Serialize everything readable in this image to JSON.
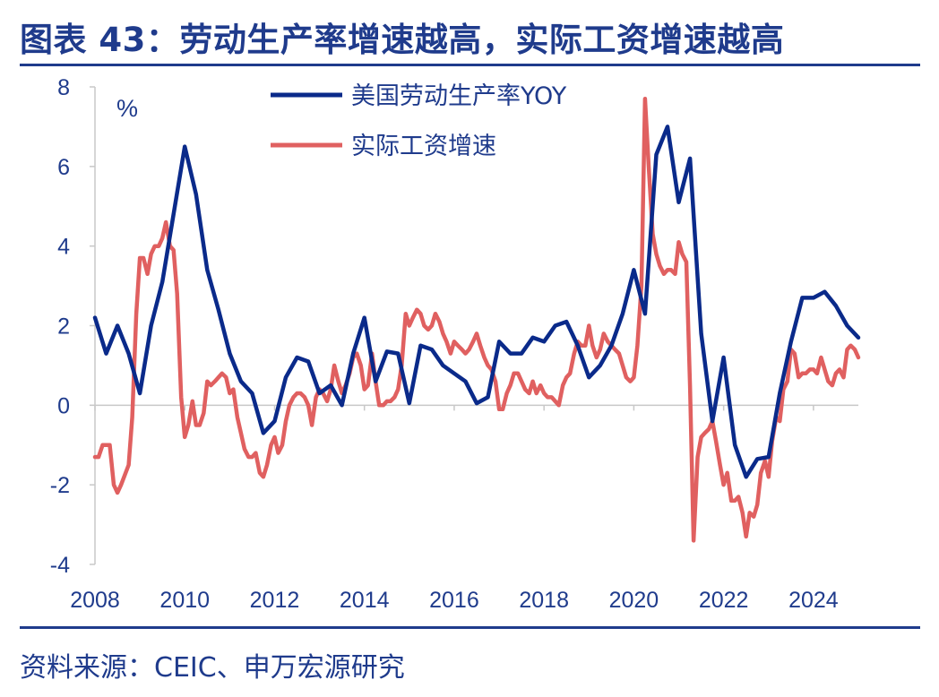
{
  "title": "图表 43：劳动生产率增速越高，实际工资增速越高",
  "source": "资料来源：CEIC、申万宏源研究",
  "colors": {
    "text": "#1f3b8c",
    "productivity": "#0a2a8a",
    "wage": "#e06060",
    "axis": "#c8c8c8"
  },
  "chart_data": {
    "type": "line",
    "ylabel": "%",
    "ylim": [
      -4,
      8
    ],
    "yticks": [
      "8",
      "6",
      "4",
      "2",
      "0",
      "-2",
      "-4"
    ],
    "xlim": [
      2008,
      2025
    ],
    "xticks": [
      "2008",
      "2010",
      "2012",
      "2014",
      "2016",
      "2018",
      "2020",
      "2022",
      "2024"
    ],
    "legend_position": "top",
    "series": [
      {
        "name": "美国劳动生产率YOY",
        "points": [
          [
            2008.0,
            2.2
          ],
          [
            2008.25,
            1.3
          ],
          [
            2008.5,
            2.0
          ],
          [
            2008.75,
            1.3
          ],
          [
            2009.0,
            0.3
          ],
          [
            2009.25,
            2.0
          ],
          [
            2009.5,
            3.1
          ],
          [
            2009.75,
            4.8
          ],
          [
            2010.0,
            6.5
          ],
          [
            2010.25,
            5.3
          ],
          [
            2010.5,
            3.4
          ],
          [
            2010.75,
            2.4
          ],
          [
            2011.0,
            1.3
          ],
          [
            2011.25,
            0.6
          ],
          [
            2011.5,
            0.3
          ],
          [
            2011.75,
            -0.7
          ],
          [
            2012.0,
            -0.4
          ],
          [
            2012.25,
            0.7
          ],
          [
            2012.5,
            1.2
          ],
          [
            2012.75,
            1.1
          ],
          [
            2013.0,
            0.3
          ],
          [
            2013.25,
            0.5
          ],
          [
            2013.5,
            0.0
          ],
          [
            2013.75,
            1.3
          ],
          [
            2014.0,
            2.2
          ],
          [
            2014.25,
            0.6
          ],
          [
            2014.5,
            1.35
          ],
          [
            2014.75,
            1.3
          ],
          [
            2015.0,
            0.05
          ],
          [
            2015.25,
            1.5
          ],
          [
            2015.5,
            1.4
          ],
          [
            2015.75,
            1.0
          ],
          [
            2016.0,
            0.8
          ],
          [
            2016.25,
            0.6
          ],
          [
            2016.5,
            0.05
          ],
          [
            2016.75,
            0.2
          ],
          [
            2017.0,
            1.6
          ],
          [
            2017.25,
            1.3
          ],
          [
            2017.5,
            1.3
          ],
          [
            2017.75,
            1.7
          ],
          [
            2018.0,
            1.6
          ],
          [
            2018.25,
            2.0
          ],
          [
            2018.5,
            2.1
          ],
          [
            2018.75,
            1.5
          ],
          [
            2019.0,
            0.7
          ],
          [
            2019.25,
            1.0
          ],
          [
            2019.5,
            1.5
          ],
          [
            2019.75,
            2.3
          ],
          [
            2020.0,
            3.4
          ],
          [
            2020.25,
            2.3
          ],
          [
            2020.5,
            6.3
          ],
          [
            2020.75,
            7.0
          ],
          [
            2021.0,
            5.1
          ],
          [
            2021.25,
            6.2
          ],
          [
            2021.5,
            1.8
          ],
          [
            2021.75,
            -0.4
          ],
          [
            2022.0,
            1.2
          ],
          [
            2022.25,
            -1.0
          ],
          [
            2022.5,
            -1.8
          ],
          [
            2022.75,
            -1.35
          ],
          [
            2023.0,
            -1.3
          ],
          [
            2023.25,
            0.3
          ],
          [
            2023.5,
            1.6
          ],
          [
            2023.75,
            2.7
          ],
          [
            2024.0,
            2.7
          ],
          [
            2024.25,
            2.85
          ],
          [
            2024.5,
            2.5
          ],
          [
            2024.75,
            2.0
          ],
          [
            2025.0,
            1.7
          ]
        ]
      },
      {
        "name": "实际工资增速",
        "points": [
          [
            2008.0,
            -1.3
          ],
          [
            2008.08,
            -1.3
          ],
          [
            2008.17,
            -1.0
          ],
          [
            2008.33,
            -1.0
          ],
          [
            2008.42,
            -2.0
          ],
          [
            2008.5,
            -2.2
          ],
          [
            2008.58,
            -2.0
          ],
          [
            2008.75,
            -1.5
          ],
          [
            2008.83,
            -0.3
          ],
          [
            2008.92,
            2.3
          ],
          [
            2009.0,
            3.7
          ],
          [
            2009.08,
            3.7
          ],
          [
            2009.17,
            3.3
          ],
          [
            2009.25,
            3.8
          ],
          [
            2009.33,
            4.0
          ],
          [
            2009.42,
            4.0
          ],
          [
            2009.5,
            4.2
          ],
          [
            2009.58,
            4.6
          ],
          [
            2009.67,
            4.0
          ],
          [
            2009.75,
            3.9
          ],
          [
            2009.83,
            2.8
          ],
          [
            2009.92,
            0.2
          ],
          [
            2010.0,
            -0.8
          ],
          [
            2010.08,
            -0.5
          ],
          [
            2010.17,
            0.1
          ],
          [
            2010.25,
            -0.5
          ],
          [
            2010.33,
            -0.5
          ],
          [
            2010.42,
            -0.2
          ],
          [
            2010.5,
            0.6
          ],
          [
            2010.58,
            0.5
          ],
          [
            2010.67,
            0.6
          ],
          [
            2010.75,
            0.7
          ],
          [
            2010.83,
            0.8
          ],
          [
            2010.92,
            0.7
          ],
          [
            2011.0,
            0.3
          ],
          [
            2011.08,
            0.4
          ],
          [
            2011.17,
            -0.3
          ],
          [
            2011.25,
            -0.7
          ],
          [
            2011.33,
            -1.1
          ],
          [
            2011.42,
            -1.3
          ],
          [
            2011.5,
            -1.3
          ],
          [
            2011.58,
            -1.2
          ],
          [
            2011.67,
            -1.7
          ],
          [
            2011.75,
            -1.8
          ],
          [
            2011.83,
            -1.5
          ],
          [
            2011.92,
            -1.0
          ],
          [
            2012.0,
            -0.8
          ],
          [
            2012.08,
            -1.2
          ],
          [
            2012.17,
            -1.0
          ],
          [
            2012.25,
            -0.4
          ],
          [
            2012.33,
            0.0
          ],
          [
            2012.42,
            0.2
          ],
          [
            2012.5,
            0.3
          ],
          [
            2012.58,
            0.3
          ],
          [
            2012.67,
            0.2
          ],
          [
            2012.75,
            0.0
          ],
          [
            2012.83,
            -0.5
          ],
          [
            2012.92,
            0.2
          ],
          [
            2013.0,
            0.4
          ],
          [
            2013.08,
            0.3
          ],
          [
            2013.17,
            0.1
          ],
          [
            2013.25,
            0.4
          ],
          [
            2013.33,
            1.0
          ],
          [
            2013.42,
            0.6
          ],
          [
            2013.5,
            0.3
          ],
          [
            2013.58,
            0.5
          ],
          [
            2013.67,
            0.8
          ],
          [
            2013.75,
            1.2
          ],
          [
            2013.83,
            1.3
          ],
          [
            2013.92,
            1.0
          ],
          [
            2014.0,
            0.4
          ],
          [
            2014.08,
            0.5
          ],
          [
            2014.17,
            1.3
          ],
          [
            2014.25,
            0.6
          ],
          [
            2014.33,
            0.0
          ],
          [
            2014.42,
            0.0
          ],
          [
            2014.5,
            0.1
          ],
          [
            2014.58,
            0.1
          ],
          [
            2014.67,
            0.2
          ],
          [
            2014.75,
            0.4
          ],
          [
            2014.83,
            1.0
          ],
          [
            2014.92,
            2.3
          ],
          [
            2015.0,
            2.0
          ],
          [
            2015.08,
            2.2
          ],
          [
            2015.17,
            2.4
          ],
          [
            2015.25,
            2.3
          ],
          [
            2015.33,
            2.0
          ],
          [
            2015.42,
            1.9
          ],
          [
            2015.5,
            2.0
          ],
          [
            2015.58,
            2.3
          ],
          [
            2015.67,
            2.1
          ],
          [
            2015.75,
            1.8
          ],
          [
            2015.83,
            1.6
          ],
          [
            2015.92,
            1.3
          ],
          [
            2016.0,
            1.6
          ],
          [
            2016.08,
            1.5
          ],
          [
            2016.17,
            1.4
          ],
          [
            2016.25,
            1.3
          ],
          [
            2016.33,
            1.4
          ],
          [
            2016.42,
            1.6
          ],
          [
            2016.5,
            1.8
          ],
          [
            2016.58,
            1.5
          ],
          [
            2016.67,
            1.2
          ],
          [
            2016.75,
            1.0
          ],
          [
            2016.83,
            0.9
          ],
          [
            2016.92,
            0.6
          ],
          [
            2017.0,
            -0.1
          ],
          [
            2017.08,
            -0.1
          ],
          [
            2017.17,
            0.3
          ],
          [
            2017.25,
            0.5
          ],
          [
            2017.33,
            0.8
          ],
          [
            2017.42,
            0.8
          ],
          [
            2017.5,
            0.6
          ],
          [
            2017.58,
            0.4
          ],
          [
            2017.67,
            0.3
          ],
          [
            2017.75,
            0.6
          ],
          [
            2017.83,
            0.3
          ],
          [
            2017.92,
            0.5
          ],
          [
            2018.0,
            0.3
          ],
          [
            2018.08,
            0.2
          ],
          [
            2018.17,
            0.2
          ],
          [
            2018.25,
            0.1
          ],
          [
            2018.33,
            0.0
          ],
          [
            2018.42,
            0.5
          ],
          [
            2018.5,
            0.7
          ],
          [
            2018.58,
            0.8
          ],
          [
            2018.67,
            1.3
          ],
          [
            2018.75,
            1.6
          ],
          [
            2018.83,
            1.5
          ],
          [
            2018.92,
            1.5
          ],
          [
            2019.0,
            2.0
          ],
          [
            2019.08,
            1.5
          ],
          [
            2019.17,
            1.2
          ],
          [
            2019.25,
            1.4
          ],
          [
            2019.33,
            1.8
          ],
          [
            2019.42,
            1.6
          ],
          [
            2019.5,
            1.5
          ],
          [
            2019.58,
            1.4
          ],
          [
            2019.67,
            1.3
          ],
          [
            2019.75,
            1.0
          ],
          [
            2019.83,
            0.7
          ],
          [
            2019.92,
            0.6
          ],
          [
            2020.0,
            0.7
          ],
          [
            2020.08,
            1.5
          ],
          [
            2020.17,
            3.0
          ],
          [
            2020.25,
            7.7
          ],
          [
            2020.33,
            6.0
          ],
          [
            2020.42,
            4.3
          ],
          [
            2020.5,
            3.8
          ],
          [
            2020.58,
            3.5
          ],
          [
            2020.67,
            3.3
          ],
          [
            2020.75,
            3.4
          ],
          [
            2020.83,
            3.4
          ],
          [
            2020.92,
            3.3
          ],
          [
            2021.0,
            4.1
          ],
          [
            2021.08,
            3.8
          ],
          [
            2021.17,
            3.6
          ],
          [
            2021.25,
            0.5
          ],
          [
            2021.33,
            -3.4
          ],
          [
            2021.42,
            -1.3
          ],
          [
            2021.5,
            -0.8
          ],
          [
            2021.58,
            -0.7
          ],
          [
            2021.67,
            -0.6
          ],
          [
            2021.75,
            -0.4
          ],
          [
            2021.83,
            -0.9
          ],
          [
            2021.92,
            -1.5
          ],
          [
            2022.0,
            -2.0
          ],
          [
            2022.08,
            -1.7
          ],
          [
            2022.17,
            -2.4
          ],
          [
            2022.25,
            -2.4
          ],
          [
            2022.33,
            -2.3
          ],
          [
            2022.42,
            -2.7
          ],
          [
            2022.5,
            -3.3
          ],
          [
            2022.58,
            -2.7
          ],
          [
            2022.67,
            -2.8
          ],
          [
            2022.75,
            -2.5
          ],
          [
            2022.83,
            -1.7
          ],
          [
            2022.92,
            -1.4
          ],
          [
            2023.0,
            -1.8
          ],
          [
            2023.08,
            -0.9
          ],
          [
            2023.17,
            -0.3
          ],
          [
            2023.25,
            -0.4
          ],
          [
            2023.33,
            0.4
          ],
          [
            2023.42,
            0.6
          ],
          [
            2023.5,
            1.4
          ],
          [
            2023.58,
            1.3
          ],
          [
            2023.67,
            0.7
          ],
          [
            2023.75,
            0.8
          ],
          [
            2023.83,
            0.8
          ],
          [
            2023.92,
            0.9
          ],
          [
            2024.0,
            0.9
          ],
          [
            2024.08,
            0.8
          ],
          [
            2024.17,
            1.2
          ],
          [
            2024.25,
            0.9
          ],
          [
            2024.33,
            0.6
          ],
          [
            2024.42,
            0.5
          ],
          [
            2024.5,
            0.8
          ],
          [
            2024.58,
            0.9
          ],
          [
            2024.67,
            0.7
          ],
          [
            2024.75,
            1.4
          ],
          [
            2024.83,
            1.5
          ],
          [
            2024.92,
            1.4
          ],
          [
            2025.0,
            1.2
          ]
        ]
      }
    ]
  }
}
